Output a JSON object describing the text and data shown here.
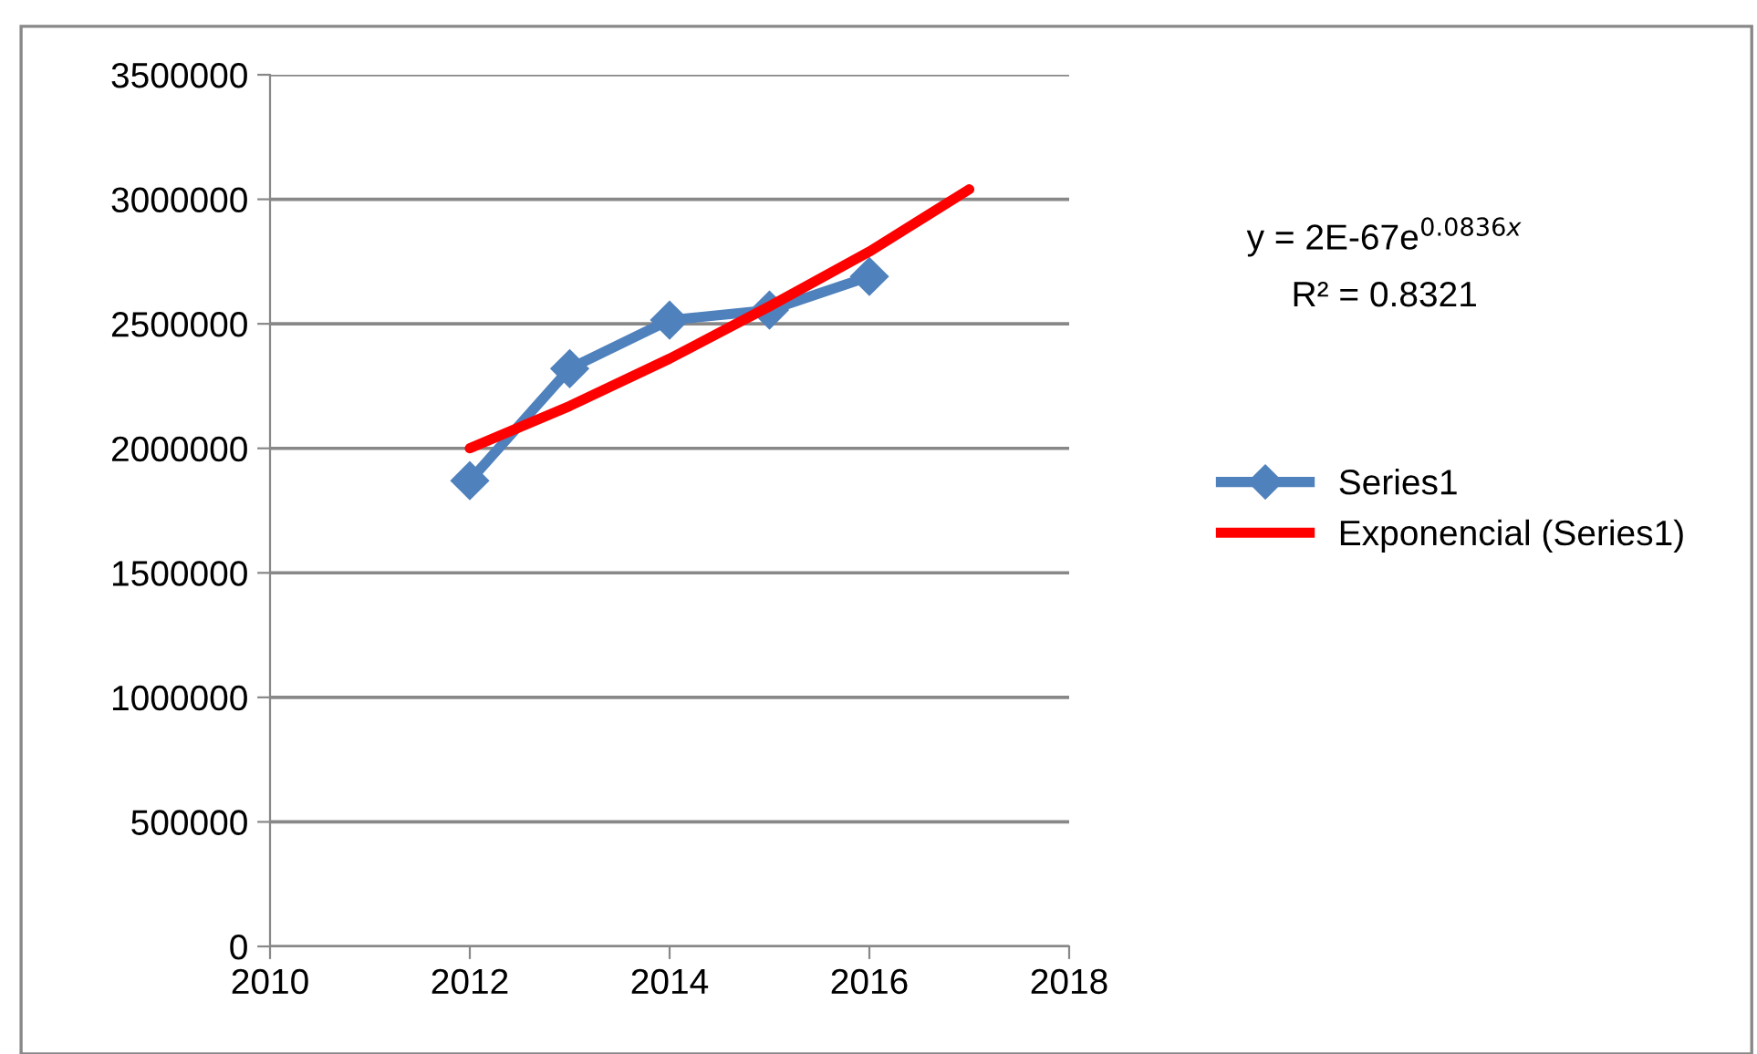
{
  "chart_data": {
    "type": "line",
    "x": [
      2012,
      2013,
      2014,
      2015,
      2016
    ],
    "series": [
      {
        "name": "Series1",
        "color": "#4f81bd",
        "values": [
          1870000,
          2320000,
          2515000,
          2555000,
          2690000
        ],
        "marker": "diamond"
      },
      {
        "name": "Exponencial (Series1)",
        "color": "#ff0000",
        "type": "line",
        "x": [
          2012,
          2013,
          2014,
          2015,
          2016,
          2017
        ],
        "values": [
          2000000,
          2170000,
          2360000,
          2570000,
          2790000,
          3040000
        ],
        "marker": "none"
      }
    ],
    "xlim": [
      2010,
      2018
    ],
    "xticks": [
      2010,
      2012,
      2014,
      2016,
      2018
    ],
    "ylim": [
      0,
      3500000
    ],
    "yticks": [
      0,
      500000,
      1000000,
      1500000,
      2000000,
      2500000,
      3000000,
      3500000
    ],
    "grid": "y",
    "legend": "right",
    "annotations": [
      "y = 2E-67e$^{0.0836x}$",
      "R² = 0.8321"
    ]
  }
}
